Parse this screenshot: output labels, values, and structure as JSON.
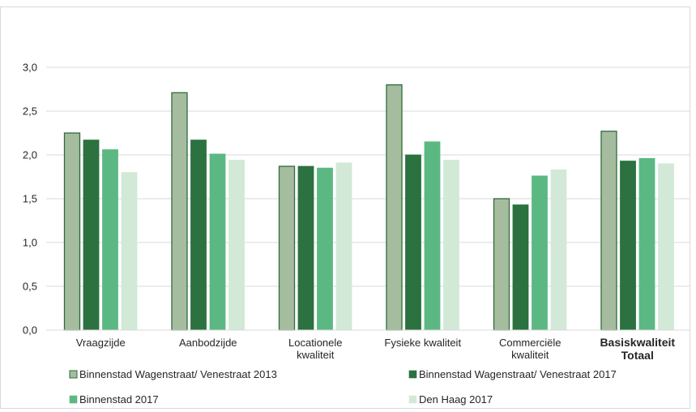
{
  "chart_data": {
    "type": "bar",
    "categories": [
      [
        "Vraagzijde"
      ],
      [
        "Aanbodzijde"
      ],
      [
        "Locationele",
        "kwaliteit"
      ],
      [
        "Fysieke kwaliteit"
      ],
      [
        "Commerciële",
        "kwaliteit"
      ],
      [
        "Basiskwaliteit",
        "Totaal"
      ]
    ],
    "bold_categories": [
      5
    ],
    "series": [
      {
        "name": "Binnenstad Wagenstraat/ Venestraat 2013",
        "color": "#a6bc9e",
        "stroke": "#2e6b3f",
        "values": [
          2.25,
          2.71,
          1.87,
          2.8,
          1.5,
          2.27
        ]
      },
      {
        "name": "Binnenstad Wagenstraat/ Venestraat 2017",
        "color": "#2c7140",
        "stroke": "#2c7140",
        "values": [
          2.17,
          2.17,
          1.87,
          2.0,
          1.43,
          1.93
        ]
      },
      {
        "name": "Binnenstad 2017",
        "color": "#5cb883",
        "stroke": "#5cb883",
        "values": [
          2.06,
          2.01,
          1.85,
          2.15,
          1.76,
          1.96
        ]
      },
      {
        "name": "Den Haag 2017",
        "color": "#d3e9d7",
        "stroke": "#d3e9d7",
        "values": [
          1.8,
          1.94,
          1.91,
          1.94,
          1.83,
          1.9
        ]
      }
    ],
    "y_ticks": [
      "0,0",
      "0,5",
      "1,0",
      "1,5",
      "2,0",
      "2,5",
      "3,0"
    ],
    "ylim": [
      0,
      3.0
    ],
    "grid": true,
    "legend_position": "bottom"
  }
}
